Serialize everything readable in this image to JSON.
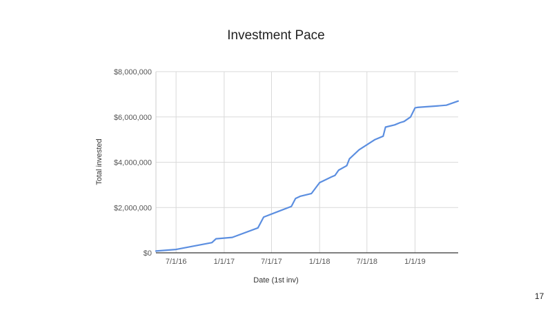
{
  "chart_data": {
    "type": "line",
    "title": "Investment Pace",
    "xlabel": "Date (1st inv)",
    "ylabel": "Total invested",
    "x_tick_labels": [
      "7/1/16",
      "1/1/17",
      "7/1/17",
      "1/1/18",
      "7/1/18",
      "1/1/19"
    ],
    "x_ticks": [
      "2016-07-01",
      "2017-01-01",
      "2017-07-01",
      "2018-01-01",
      "2018-07-01",
      "2019-01-01"
    ],
    "xlim": [
      "2016-04-15",
      "2019-06-15"
    ],
    "y_tick_labels": [
      "$0",
      "$2,000,000",
      "$4,000,000",
      "$6,000,000",
      "$8,000,000"
    ],
    "y_ticks": [
      0,
      2000000,
      4000000,
      6000000,
      8000000
    ],
    "ylim": [
      0,
      8000000
    ],
    "grid": true,
    "color": "#5b8ee0",
    "series": [
      {
        "x": [
          "2016-04-15",
          "2016-07-01",
          "2016-11-15",
          "2016-12-01",
          "2017-02-01",
          "2017-05-10",
          "2017-06-01",
          "2017-08-01",
          "2017-09-15",
          "2017-10-01",
          "2017-10-20",
          "2017-12-01",
          "2018-01-01",
          "2018-02-15",
          "2018-03-01",
          "2018-03-15",
          "2018-04-15",
          "2018-04-25",
          "2018-06-01",
          "2018-08-01",
          "2018-09-01",
          "2018-09-10",
          "2018-10-15",
          "2018-11-05",
          "2018-11-20",
          "2018-12-15",
          "2019-01-01",
          "2019-01-10",
          "2019-03-20",
          "2019-05-01",
          "2019-06-15"
        ],
        "y": [
          80000,
          150000,
          450000,
          620000,
          680000,
          1100000,
          1580000,
          1850000,
          2050000,
          2400000,
          2500000,
          2620000,
          3100000,
          3350000,
          3420000,
          3650000,
          3850000,
          4150000,
          4550000,
          5000000,
          5150000,
          5550000,
          5650000,
          5750000,
          5800000,
          6000000,
          6400000,
          6420000,
          6480000,
          6520000,
          6700000
        ]
      }
    ]
  },
  "page_number": "17"
}
